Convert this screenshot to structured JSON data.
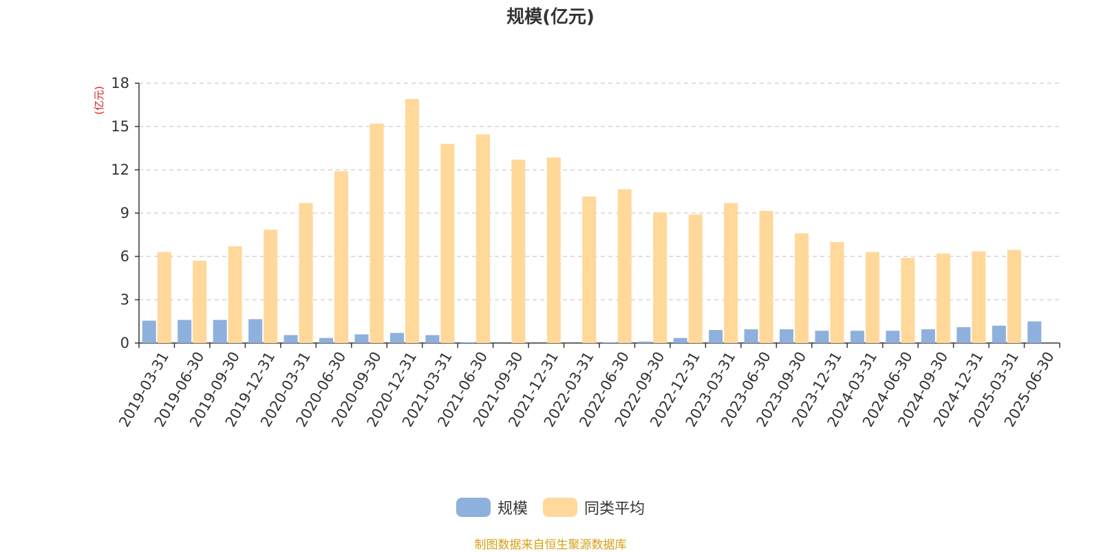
{
  "title": "规模(亿元)",
  "source_note": "制图数据来自恒生聚源数据库",
  "colors": {
    "series_0": "#8eb0dc",
    "series_1": "#ffd89a",
    "unit": "#e01a1a",
    "source": "#d4a017"
  },
  "chart_data": {
    "type": "bar",
    "title": "规模(亿元)",
    "ylabel": "(亿元)",
    "ylim": [
      0,
      18
    ],
    "yticks": [
      0,
      3,
      6,
      9,
      12,
      15,
      18
    ],
    "grid": true,
    "legend_position": "bottom",
    "categories": [
      "2019-03-31",
      "2019-06-30",
      "2019-09-30",
      "2019-12-31",
      "2020-03-31",
      "2020-06-30",
      "2020-09-30",
      "2020-12-31",
      "2021-03-31",
      "2021-06-30",
      "2021-09-30",
      "2021-12-31",
      "2022-03-31",
      "2022-06-30",
      "2022-09-30",
      "2022-12-31",
      "2023-03-31",
      "2023-06-30",
      "2023-09-30",
      "2023-12-31",
      "2024-03-31",
      "2024-06-30",
      "2024-09-30",
      "2024-12-31",
      "2025-03-31",
      "2025-06-30"
    ],
    "series": [
      {
        "name": "规模",
        "values": [
          1.55,
          1.6,
          1.6,
          1.65,
          0.55,
          0.35,
          0.6,
          0.7,
          0.55,
          0.05,
          0.0,
          0.0,
          0.0,
          0.05,
          0.1,
          0.35,
          0.9,
          0.95,
          0.95,
          0.85,
          0.85,
          0.85,
          0.95,
          1.1,
          1.2,
          1.5
        ]
      },
      {
        "name": "同类平均",
        "values": [
          6.3,
          5.7,
          6.7,
          7.85,
          9.7,
          11.9,
          15.2,
          16.9,
          13.8,
          14.45,
          12.7,
          12.85,
          10.15,
          10.65,
          9.05,
          8.9,
          9.7,
          9.15,
          7.6,
          7.0,
          6.3,
          5.9,
          6.2,
          6.35,
          6.45,
          null
        ]
      }
    ]
  }
}
